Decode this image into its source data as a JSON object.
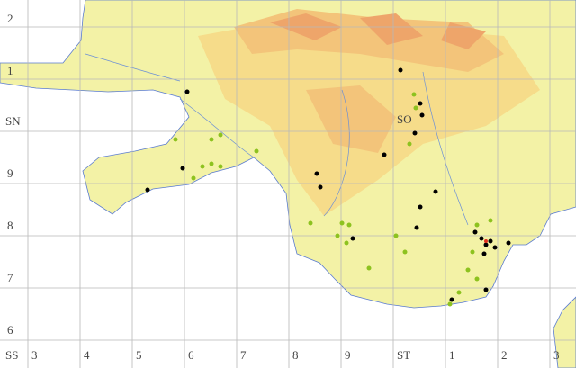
{
  "left_labels": [
    "2",
    "1",
    "SN",
    "9",
    "8",
    "7",
    "6"
  ],
  "bottom_labels": [
    "SS",
    "3",
    "4",
    "5",
    "6",
    "7",
    "8",
    "9",
    "ST",
    "1",
    "2",
    "3"
  ],
  "square_labels": [
    "SO"
  ]
}
